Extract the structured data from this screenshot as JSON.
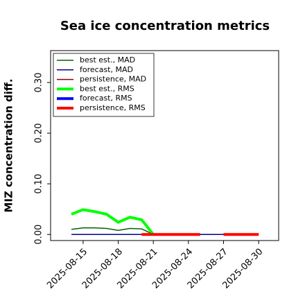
{
  "chart_data": {
    "type": "line",
    "title": "Sea ice concentration metrics",
    "y_label": "MIZ concentration diff.",
    "x": [
      "2025-08-14",
      "2025-08-15",
      "2025-08-16",
      "2025-08-17",
      "2025-08-18",
      "2025-08-19",
      "2025-08-20",
      "2025-08-21",
      "2025-08-22",
      "2025-08-23",
      "2025-08-24",
      "2025-08-25",
      "2025-08-26",
      "2025-08-27",
      "2025-08-28",
      "2025-08-29",
      "2025-08-30"
    ],
    "series": [
      {
        "name": "best est., MAD",
        "color": "#006400",
        "width": 1.5,
        "values": [
          0.01,
          0.013,
          0.013,
          0.012,
          0.008,
          0.012,
          0.011,
          0.0,
          null,
          null,
          null,
          null,
          null,
          null,
          null,
          null,
          null
        ]
      },
      {
        "name": "forecast,  MAD",
        "color": "#00008b",
        "width": 1.5,
        "values": [
          0,
          0,
          0,
          0,
          0,
          0,
          0,
          0,
          0,
          0,
          0,
          0,
          0,
          0,
          0,
          0,
          0
        ]
      },
      {
        "name": "persistence, MAD",
        "color": "#8b0000",
        "width": 1.5,
        "values": [
          null,
          null,
          null,
          null,
          null,
          null,
          0,
          0,
          0,
          0,
          0,
          0,
          null,
          0,
          0,
          0,
          0
        ]
      },
      {
        "name": "best est., RMS",
        "color": "#00ff00",
        "width": 4,
        "values": [
          0.04,
          0.049,
          0.045,
          0.04,
          0.024,
          0.034,
          0.029,
          0.0,
          null,
          null,
          null,
          null,
          null,
          null,
          null,
          null,
          null
        ]
      },
      {
        "name": "forecast,  RMS",
        "color": "#0000ff",
        "width": 4,
        "values": [
          null,
          null,
          null,
          null,
          null,
          null,
          null,
          null,
          null,
          null,
          null,
          null,
          null,
          null,
          null,
          null,
          null
        ]
      },
      {
        "name": "persistence, RMS",
        "color": "#ff0000",
        "width": 4,
        "values": [
          null,
          null,
          null,
          null,
          null,
          null,
          0,
          0,
          0,
          0,
          0,
          0,
          null,
          0,
          0,
          0,
          0
        ]
      }
    ],
    "xlim": [
      "2025-08-12T05:17",
      "2025-08-31T17:00"
    ],
    "xticks": [
      "2025-08-15",
      "2025-08-18",
      "2025-08-21",
      "2025-08-24",
      "2025-08-27",
      "2025-08-30"
    ],
    "xtick_colors": [
      "#000000",
      "#000000",
      "#228b22",
      "#000000",
      "#000000",
      "#000000"
    ],
    "ylim": [
      -0.012,
      0.363
    ],
    "yticks": [
      {
        "value": 0,
        "label": "0.00"
      },
      {
        "value": 0.1,
        "label": "0.10"
      },
      {
        "value": 0.2,
        "label": "0.20"
      },
      {
        "value": 0.3,
        "label": "0.30"
      }
    ],
    "legend": "upper left"
  }
}
